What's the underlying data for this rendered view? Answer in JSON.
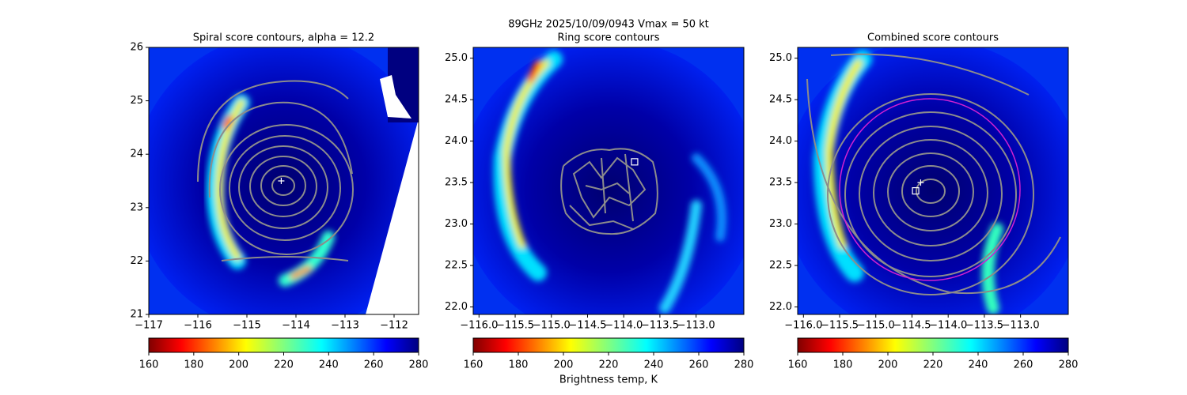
{
  "title": "89GHz  2025/10/09/0943    Vmax = 50 kt",
  "colorbar_label": "Brightness temp, K",
  "chart_data": [
    {
      "type": "contour",
      "title": "Spiral score contours, alpha = 12.2",
      "xlim": [
        -117,
        -111.5
      ],
      "ylim": [
        21,
        26
      ],
      "xticks": [
        {
          "value": -117,
          "label": "−117"
        },
        {
          "value": -116,
          "label": "−116"
        },
        {
          "value": -115,
          "label": "−115"
        },
        {
          "value": -114,
          "label": "−114"
        },
        {
          "value": -113,
          "label": "−113"
        },
        {
          "value": -112,
          "label": "−112"
        }
      ],
      "yticks": [
        21,
        22,
        23,
        24,
        25,
        26
      ],
      "cbar_lim": [
        160,
        280
      ],
      "cbar_ticks": [
        160,
        180,
        200,
        220,
        240,
        260,
        280
      ],
      "markers": [
        {
          "x": -114.3,
          "y": 23.5,
          "shape": "plus"
        }
      ]
    },
    {
      "type": "contour",
      "title": "Ring score contours",
      "xlim": [
        -116.08,
        -112.34
      ],
      "ylim": [
        21.91,
        25.13
      ],
      "xticks": [
        {
          "value": -116.0,
          "label": "−116.0"
        },
        {
          "value": -115.5,
          "label": "−115.5"
        },
        {
          "value": -115.0,
          "label": "−115.0"
        },
        {
          "value": -114.5,
          "label": "−114.5"
        },
        {
          "value": -114.0,
          "label": "−114.0"
        },
        {
          "value": -113.5,
          "label": "−113.5"
        },
        {
          "value": -113.0,
          "label": "−113.0"
        }
      ],
      "yticks": [
        {
          "value": 22.0,
          "label": "22.0"
        },
        22.5,
        {
          "value": 23.0,
          "label": "23.0"
        },
        23.5,
        {
          "value": 24.0,
          "label": "24.0"
        },
        24.5,
        {
          "value": 25.0,
          "label": "25.0"
        }
      ],
      "cbar_lim": [
        160,
        280
      ],
      "cbar_ticks": [
        160,
        180,
        200,
        220,
        240,
        260,
        280
      ],
      "markers": [
        {
          "x": -113.85,
          "y": 23.75,
          "shape": "square"
        }
      ]
    },
    {
      "type": "contour",
      "title": "Combined score contours",
      "xlim": [
        -116.08,
        -112.34
      ],
      "ylim": [
        21.91,
        25.13
      ],
      "xticks": [
        {
          "value": -116.0,
          "label": "−116.0"
        },
        {
          "value": -115.5,
          "label": "−115.5"
        },
        {
          "value": -115.0,
          "label": "−115.0"
        },
        {
          "value": -114.5,
          "label": "−114.5"
        },
        {
          "value": -114.0,
          "label": "−114.0"
        },
        {
          "value": -113.5,
          "label": "−113.5"
        },
        {
          "value": -113.0,
          "label": "−113.0"
        }
      ],
      "yticks": [
        {
          "value": 22.0,
          "label": "22.0"
        },
        22.5,
        {
          "value": 23.0,
          "label": "23.0"
        },
        23.5,
        {
          "value": 24.0,
          "label": "24.0"
        },
        24.5,
        {
          "value": 25.0,
          "label": "25.0"
        }
      ],
      "cbar_lim": [
        160,
        280
      ],
      "cbar_ticks": [
        160,
        180,
        200,
        220,
        240,
        260,
        280
      ],
      "markers": [
        {
          "x": -114.38,
          "y": 23.5,
          "shape": "plus"
        },
        {
          "x": -114.45,
          "y": 23.4,
          "shape": "square"
        }
      ]
    }
  ]
}
